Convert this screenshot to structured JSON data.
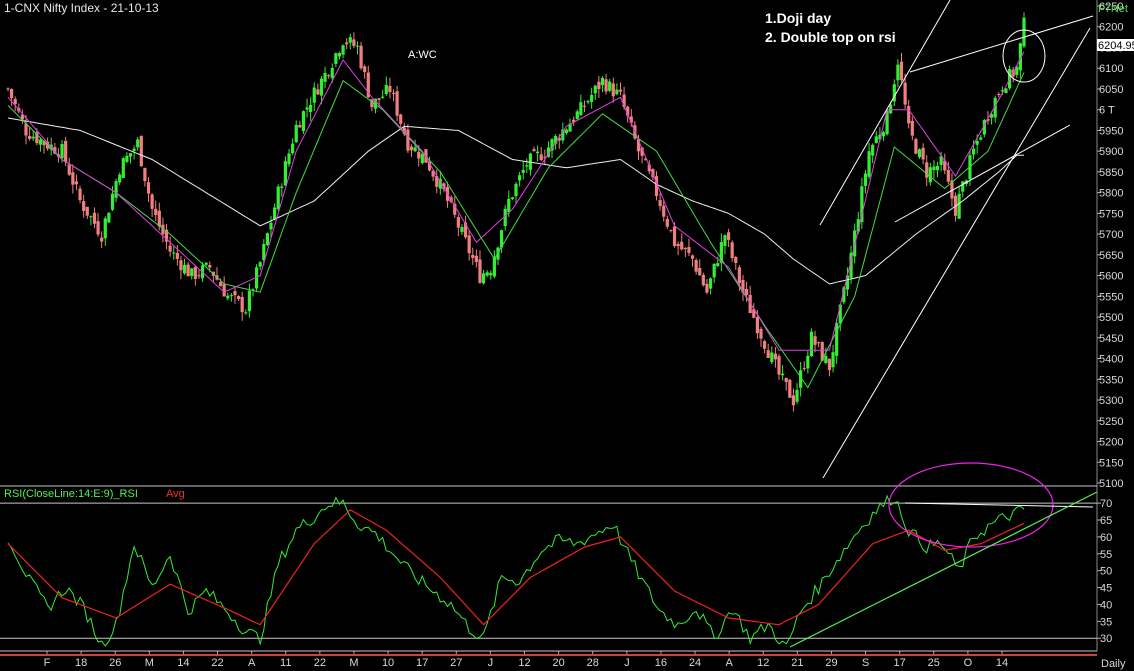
{
  "header": {
    "title": "1-CNX Nifty Index - 21-10-13",
    "brand": "F7Net",
    "last_price": "6204.95"
  },
  "notes": [
    "1.Doji day",
    "2. Double top on rsi"
  ],
  "peak_label": "A:WC",
  "rsi_panel": {
    "label_main": "RSI(CloseLine:14:E:9)_RSI",
    "label_avg": "Avg"
  },
  "footer": {
    "period": "Daily"
  },
  "colors": {
    "background": "#000000",
    "up_candle": "#33ee33",
    "down_candle": "#f08080",
    "ema_short": "#e040e0",
    "ema_mid": "#40dd40",
    "ema_long": "#f0f0f0",
    "rsi_line": "#33ee33",
    "rsi_avg": "#ee2222",
    "annotation_white": "#ffffff",
    "annotation_green": "#55ee55",
    "annotation_magenta": "#ee22ee"
  },
  "chart_data": [
    {
      "type": "candlestick",
      "ylim": [
        5100,
        6250
      ],
      "y_ticks": [
        5100,
        5150,
        5200,
        5250,
        5300,
        5350,
        5400,
        5450,
        5500,
        5550,
        5600,
        5650,
        5700,
        5750,
        5800,
        5850,
        5900,
        5950,
        6000,
        6050,
        6100,
        6150,
        6200,
        6250
      ],
      "y_tick_labels": [
        "5100",
        "5150",
        "5200",
        "5250",
        "5300",
        "5350",
        "5400",
        "5450",
        "5500",
        "5550",
        "5600",
        "5650",
        "5700",
        "5750",
        "5800",
        "5850",
        "5900",
        "5950",
        "6 T",
        "6050",
        "6100",
        "6150",
        "6200",
        "6250"
      ],
      "x_tick_labels": [
        "F",
        "18",
        "26",
        "M",
        "14",
        "22",
        "A",
        "11",
        "22",
        "M",
        "10",
        "17",
        "27",
        "J",
        "12",
        "20",
        "28",
        "J",
        "16",
        "24",
        "A",
        "12",
        "21",
        "29",
        "S",
        "17",
        "25",
        "O",
        "14"
      ],
      "close_anchors": [
        [
          0,
          6050
        ],
        [
          5,
          5950
        ],
        [
          10,
          5920
        ],
        [
          15,
          5900
        ],
        [
          20,
          5780
        ],
        [
          26,
          5700
        ],
        [
          31,
          5860
        ],
        [
          36,
          5920
        ],
        [
          40,
          5760
        ],
        [
          45,
          5660
        ],
        [
          51,
          5600
        ],
        [
          56,
          5620
        ],
        [
          61,
          5550
        ],
        [
          66,
          5520
        ],
        [
          70,
          5630
        ],
        [
          75,
          5800
        ],
        [
          80,
          5960
        ],
        [
          85,
          6040
        ],
        [
          89,
          6100
        ],
        [
          93,
          6170
        ],
        [
          97,
          6150
        ],
        [
          101,
          6010
        ],
        [
          106,
          6050
        ],
        [
          111,
          5920
        ],
        [
          116,
          5880
        ],
        [
          121,
          5800
        ],
        [
          126,
          5700
        ],
        [
          131,
          5600
        ],
        [
          134,
          5620
        ],
        [
          139,
          5780
        ],
        [
          144,
          5870
        ],
        [
          149,
          5900
        ],
        [
          154,
          5950
        ],
        [
          159,
          6000
        ],
        [
          165,
          6070
        ],
        [
          170,
          6030
        ],
        [
          175,
          5900
        ],
        [
          180,
          5800
        ],
        [
          185,
          5680
        ],
        [
          190,
          5640
        ],
        [
          194,
          5560
        ],
        [
          199,
          5700
        ],
        [
          204,
          5560
        ],
        [
          209,
          5460
        ],
        [
          214,
          5360
        ],
        [
          218,
          5300
        ],
        [
          223,
          5450
        ],
        [
          228,
          5380
        ],
        [
          233,
          5600
        ],
        [
          239,
          5900
        ],
        [
          244,
          5980
        ],
        [
          247,
          6120
        ],
        [
          250,
          5950
        ],
        [
          255,
          5850
        ],
        [
          259,
          5870
        ],
        [
          263,
          5760
        ],
        [
          268,
          5900
        ],
        [
          272,
          5990
        ],
        [
          276,
          6060
        ],
        [
          280,
          6100
        ],
        [
          282,
          6204
        ]
      ],
      "ema_short_anchors": [
        [
          0,
          6030
        ],
        [
          15,
          5880
        ],
        [
          30,
          5800
        ],
        [
          45,
          5680
        ],
        [
          60,
          5560
        ],
        [
          70,
          5600
        ],
        [
          80,
          5900
        ],
        [
          93,
          6120
        ],
        [
          101,
          6030
        ],
        [
          115,
          5900
        ],
        [
          130,
          5680
        ],
        [
          140,
          5760
        ],
        [
          155,
          5960
        ],
        [
          170,
          6030
        ],
        [
          185,
          5720
        ],
        [
          200,
          5620
        ],
        [
          214,
          5420
        ],
        [
          228,
          5420
        ],
        [
          244,
          6000
        ],
        [
          250,
          6000
        ],
        [
          263,
          5840
        ],
        [
          276,
          6040
        ],
        [
          282,
          6140
        ]
      ],
      "ema_mid_anchors": [
        [
          0,
          6010
        ],
        [
          15,
          5880
        ],
        [
          30,
          5800
        ],
        [
          45,
          5700
        ],
        [
          60,
          5580
        ],
        [
          70,
          5560
        ],
        [
          80,
          5800
        ],
        [
          93,
          6070
        ],
        [
          104,
          6000
        ],
        [
          120,
          5850
        ],
        [
          135,
          5640
        ],
        [
          150,
          5860
        ],
        [
          165,
          5990
        ],
        [
          180,
          5900
        ],
        [
          195,
          5680
        ],
        [
          210,
          5480
        ],
        [
          222,
          5330
        ],
        [
          235,
          5550
        ],
        [
          246,
          5910
        ],
        [
          260,
          5810
        ],
        [
          272,
          5900
        ],
        [
          282,
          6090
        ]
      ],
      "ema_long_anchors": [
        [
          0,
          5980
        ],
        [
          20,
          5950
        ],
        [
          40,
          5880
        ],
        [
          55,
          5800
        ],
        [
          70,
          5720
        ],
        [
          85,
          5780
        ],
        [
          100,
          5900
        ],
        [
          110,
          5960
        ],
        [
          125,
          5950
        ],
        [
          140,
          5880
        ],
        [
          155,
          5860
        ],
        [
          170,
          5880
        ],
        [
          180,
          5820
        ],
        [
          190,
          5780
        ],
        [
          200,
          5750
        ],
        [
          210,
          5700
        ],
        [
          218,
          5640
        ],
        [
          228,
          5580
        ],
        [
          238,
          5600
        ],
        [
          252,
          5700
        ],
        [
          265,
          5780
        ],
        [
          275,
          5850
        ],
        [
          280,
          5890
        ]
      ]
    },
    {
      "type": "line",
      "ylim": [
        28,
        73
      ],
      "y_ticks": [
        30,
        35,
        40,
        45,
        50,
        55,
        60,
        65,
        70
      ],
      "y_tick_labels": [
        "30",
        "35",
        "40",
        "45",
        "50",
        "55",
        "60",
        "65",
        "70"
      ],
      "overbought": 70,
      "oversold": 30,
      "rsi_anchors": [
        [
          0,
          60
        ],
        [
          6,
          47
        ],
        [
          11,
          39
        ],
        [
          16,
          45
        ],
        [
          21,
          39
        ],
        [
          26,
          28
        ],
        [
          30,
          34
        ],
        [
          35,
          58
        ],
        [
          40,
          45
        ],
        [
          45,
          55
        ],
        [
          50,
          38
        ],
        [
          55,
          44
        ],
        [
          61,
          38
        ],
        [
          66,
          32
        ],
        [
          70,
          30
        ],
        [
          75,
          52
        ],
        [
          80,
          62
        ],
        [
          85,
          66
        ],
        [
          89,
          70
        ],
        [
          93,
          70
        ],
        [
          97,
          64
        ],
        [
          102,
          61
        ],
        [
          107,
          55
        ],
        [
          112,
          49
        ],
        [
          118,
          44
        ],
        [
          123,
          40
        ],
        [
          128,
          33
        ],
        [
          132,
          30
        ],
        [
          137,
          48
        ],
        [
          142,
          47
        ],
        [
          148,
          56
        ],
        [
          153,
          59
        ],
        [
          158,
          58
        ],
        [
          163,
          61
        ],
        [
          168,
          64
        ],
        [
          171,
          57
        ],
        [
          176,
          47
        ],
        [
          181,
          38
        ],
        [
          186,
          34
        ],
        [
          191,
          39
        ],
        [
          196,
          30
        ],
        [
          201,
          39
        ],
        [
          206,
          30
        ],
        [
          211,
          34
        ],
        [
          216,
          27
        ],
        [
          220,
          38
        ],
        [
          225,
          45
        ],
        [
          230,
          53
        ],
        [
          236,
          62
        ],
        [
          241,
          68
        ],
        [
          246,
          72
        ],
        [
          250,
          62
        ],
        [
          255,
          57
        ],
        [
          259,
          58
        ],
        [
          264,
          50
        ],
        [
          268,
          60
        ],
        [
          272,
          63
        ],
        [
          277,
          66
        ],
        [
          282,
          68
        ]
      ],
      "rsi_avg_anchors": [
        [
          0,
          58
        ],
        [
          15,
          42
        ],
        [
          30,
          36
        ],
        [
          45,
          46
        ],
        [
          60,
          39
        ],
        [
          70,
          34
        ],
        [
          85,
          58
        ],
        [
          95,
          68
        ],
        [
          105,
          62
        ],
        [
          120,
          48
        ],
        [
          132,
          34
        ],
        [
          145,
          48
        ],
        [
          160,
          57
        ],
        [
          170,
          60
        ],
        [
          185,
          44
        ],
        [
          200,
          36
        ],
        [
          214,
          34
        ],
        [
          225,
          40
        ],
        [
          240,
          58
        ],
        [
          250,
          62
        ],
        [
          260,
          56
        ],
        [
          270,
          58
        ],
        [
          282,
          64
        ]
      ]
    }
  ]
}
